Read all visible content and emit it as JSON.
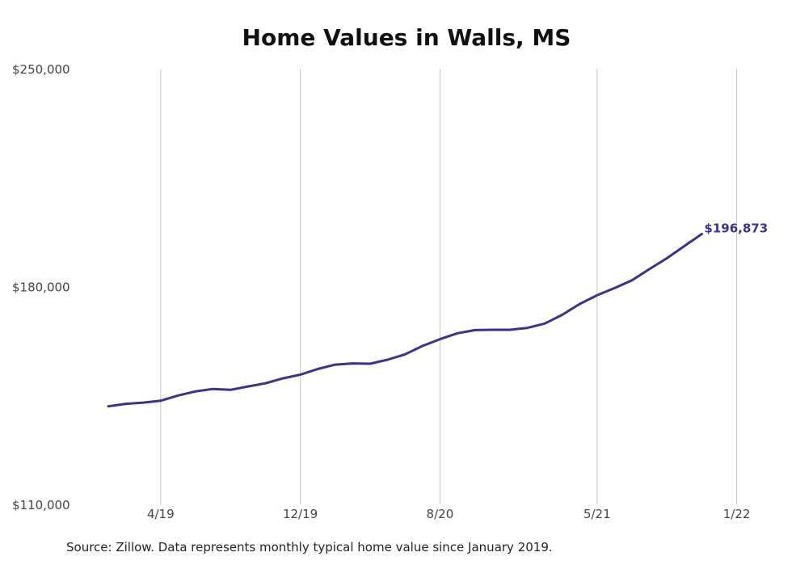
{
  "chart_data": {
    "type": "line",
    "title": "Home Values in Walls, MS",
    "xlabel": "",
    "ylabel": "",
    "ylim": [
      110000,
      250000
    ],
    "y_ticks": [
      110000,
      180000,
      250000
    ],
    "y_tick_labels": [
      "$110,000",
      "$180,000",
      "$250,000"
    ],
    "x_tick_labels": [
      "4/19",
      "12/19",
      "8/20",
      "5/21",
      "1/22"
    ],
    "x_tick_dates": [
      "2019-04",
      "2019-12",
      "2020-08",
      "2021-05",
      "2022-01"
    ],
    "grid": "vertical",
    "legend": "none",
    "series": [
      {
        "color": "#3a3196",
        "end_label": "$196,873",
        "points": [
          {
            "x": "2019-01",
            "y": 141500
          },
          {
            "x": "2019-02",
            "y": 142300
          },
          {
            "x": "2019-03",
            "y": 142700
          },
          {
            "x": "2019-04",
            "y": 143300
          },
          {
            "x": "2019-05",
            "y": 145000
          },
          {
            "x": "2019-06",
            "y": 146300
          },
          {
            "x": "2019-07",
            "y": 147100
          },
          {
            "x": "2019-08",
            "y": 146800
          },
          {
            "x": "2019-09",
            "y": 147900
          },
          {
            "x": "2019-10",
            "y": 148900
          },
          {
            "x": "2019-11",
            "y": 150500
          },
          {
            "x": "2019-12",
            "y": 151700
          },
          {
            "x": "2020-01",
            "y": 153500
          },
          {
            "x": "2020-02",
            "y": 154900
          },
          {
            "x": "2020-03",
            "y": 155300
          },
          {
            "x": "2020-04",
            "y": 155200
          },
          {
            "x": "2020-05",
            "y": 156500
          },
          {
            "x": "2020-06",
            "y": 158200
          },
          {
            "x": "2020-07",
            "y": 160900
          },
          {
            "x": "2020-08",
            "y": 163100
          },
          {
            "x": "2020-09",
            "y": 165000
          },
          {
            "x": "2020-10",
            "y": 166000
          },
          {
            "x": "2020-11",
            "y": 166100
          },
          {
            "x": "2020-12",
            "y": 166100
          },
          {
            "x": "2021-01",
            "y": 166700
          },
          {
            "x": "2021-02",
            "y": 168100
          },
          {
            "x": "2021-03",
            "y": 170900
          },
          {
            "x": "2021-04",
            "y": 174400
          },
          {
            "x": "2021-05",
            "y": 177200
          },
          {
            "x": "2021-06",
            "y": 179500
          },
          {
            "x": "2021-07",
            "y": 182000
          },
          {
            "x": "2021-08",
            "y": 185600
          },
          {
            "x": "2021-09",
            "y": 189100
          },
          {
            "x": "2021-10",
            "y": 193000
          },
          {
            "x": "2021-11",
            "y": 196873
          }
        ]
      }
    ],
    "source": "Source: Zillow. Data represents monthly typical home value since January 2019."
  }
}
